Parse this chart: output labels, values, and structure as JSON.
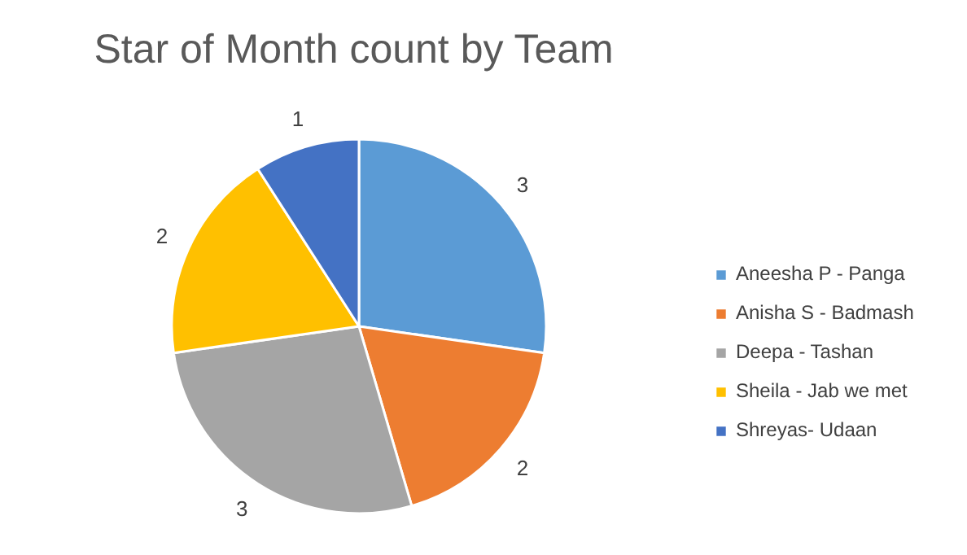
{
  "chart_data": {
    "type": "pie",
    "title": "Star of Month count by Team",
    "categories": [
      "Aneesha P - Panga",
      "Anisha S - Badmash",
      "Deepa - Tashan",
      "Sheila - Jab we met",
      "Shreyas- Udaan"
    ],
    "values": [
      3,
      2,
      3,
      2,
      1
    ],
    "colors": [
      "#5b9bd5",
      "#ed7d31",
      "#a5a5a5",
      "#ffc000",
      "#4472c4"
    ],
    "data_labels": true,
    "legend": "right"
  }
}
